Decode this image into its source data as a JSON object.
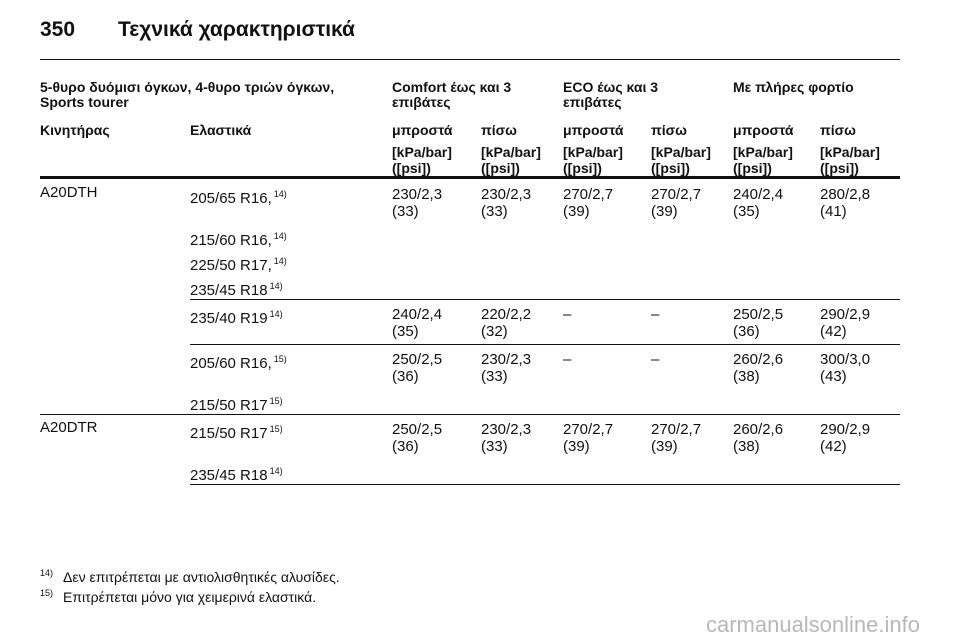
{
  "header": {
    "page_number": "350",
    "title": "Τεχνικά χαρακτηριστικά"
  },
  "table": {
    "group_headers": [
      "5-θυρο δυόμισι όγκων, 4-θυρο τριών όγκων, Sports tourer",
      "Comfort έως και 3 επιβάτες",
      "ECO έως και 3 επιβάτες",
      "Με πλήρες φορτίο"
    ],
    "column_headers": [
      "Κινητήρας",
      "Ελαστικά",
      "μπροστά",
      "πίσω",
      "μπροστά",
      "πίσω",
      "μπροστά",
      "πίσω"
    ],
    "units": [
      {
        "bar": "[kPa/bar]",
        "psi": "([psi])"
      },
      {
        "bar": "[kPa/bar]",
        "psi": "([psi])"
      },
      {
        "bar": "[kPa/bar]",
        "psi": "([psi])"
      },
      {
        "bar": "[kPa/bar]",
        "psi": "([psi])"
      },
      {
        "bar": "[kPa/bar]",
        "psi": "([psi])"
      },
      {
        "bar": "[kPa/bar]",
        "psi": "([psi])"
      }
    ],
    "groups": [
      {
        "engine": "A20DTH",
        "blocks": [
          {
            "tires": [
              {
                "size": "205/65 R16,",
                "note": "14)"
              },
              {
                "size": "215/60 R16,",
                "note": "14)"
              },
              {
                "size": "225/50 R17,",
                "note": "14)"
              },
              {
                "size": "235/45 R18",
                "note": "14)"
              }
            ],
            "pressures": [
              {
                "bar": "230/2,3",
                "psi": "(33)"
              },
              {
                "bar": "230/2,3",
                "psi": "(33)"
              },
              {
                "bar": "270/2,7",
                "psi": "(39)"
              },
              {
                "bar": "270/2,7",
                "psi": "(39)"
              },
              {
                "bar": "240/2,4",
                "psi": "(35)"
              },
              {
                "bar": "280/2,8",
                "psi": "(41)"
              }
            ]
          },
          {
            "tires": [
              {
                "size": "235/40 R19",
                "note": "14)"
              }
            ],
            "pressures": [
              {
                "bar": "240/2,4",
                "psi": "(35)"
              },
              {
                "bar": "220/2,2",
                "psi": "(32)"
              },
              {
                "bar": "–"
              },
              {
                "bar": "–"
              },
              {
                "bar": "250/2,5",
                "psi": "(36)"
              },
              {
                "bar": "290/2,9",
                "psi": "(42)"
              }
            ]
          },
          {
            "tires": [
              {
                "size": "205/60 R16,",
                "note": "15)"
              },
              {
                "size": "215/50 R17",
                "note": "15)"
              }
            ],
            "pressures": [
              {
                "bar": "250/2,5",
                "psi": "(36)"
              },
              {
                "bar": "230/2,3",
                "psi": "(33)"
              },
              {
                "bar": "–"
              },
              {
                "bar": "–"
              },
              {
                "bar": "260/2,6",
                "psi": "(38)"
              },
              {
                "bar": "300/3,0",
                "psi": "(43)"
              }
            ]
          }
        ]
      },
      {
        "engine": "A20DTR",
        "blocks": [
          {
            "tires": [
              {
                "size": "215/50 R17",
                "note": "15)"
              },
              {
                "size": "235/45 R18",
                "note": "14)"
              }
            ],
            "pressures": [
              {
                "bar": "250/2,5",
                "psi": "(36)"
              },
              {
                "bar": "230/2,3",
                "psi": "(33)"
              },
              {
                "bar": "270/2,7",
                "psi": "(39)"
              },
              {
                "bar": "270/2,7",
                "psi": "(39)"
              },
              {
                "bar": "260/2,6",
                "psi": "(38)"
              },
              {
                "bar": "290/2,9",
                "psi": "(42)"
              }
            ]
          }
        ]
      }
    ]
  },
  "footnotes": [
    {
      "mark": "14)",
      "text": "Δεν επιτρέπεται με αντιολισθητικές αλυσίδες."
    },
    {
      "mark": "15)",
      "text": "Επιτρέπεται μόνο για χειμερινά ελαστικά."
    }
  ],
  "watermark": "carmanualsonline.info"
}
